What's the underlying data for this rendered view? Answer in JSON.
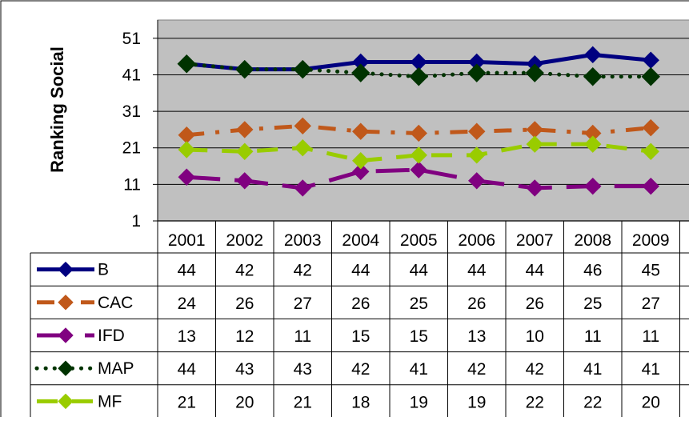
{
  "chart_data": {
    "type": "line",
    "title": "",
    "xlabel": "",
    "ylabel": "Ranking Social",
    "categories": [
      "2001",
      "2002",
      "2003",
      "2004",
      "2005",
      "2006",
      "2007",
      "2008",
      "2009"
    ],
    "yticks": [
      "1",
      "11",
      "21",
      "31",
      "41",
      "51"
    ],
    "ylim": [
      1,
      56
    ],
    "grid": true,
    "legend": "data-table",
    "plot_background": "#c0c0c0",
    "series": [
      {
        "name": "B",
        "values": [
          44,
          42,
          42,
          44,
          44,
          44,
          44,
          46,
          45
        ],
        "color": "#000080",
        "dash": "solid",
        "marker": "diamond"
      },
      {
        "name": "CAC",
        "values": [
          24,
          26,
          27,
          26,
          25,
          26,
          26,
          25,
          27
        ],
        "color": "#c0581a",
        "dash": "dash-dot",
        "marker": "diamond"
      },
      {
        "name": "IFD",
        "values": [
          13,
          12,
          11,
          15,
          15,
          13,
          10,
          11,
          11
        ],
        "color": "#800080",
        "dash": "long-dash",
        "marker": "diamond"
      },
      {
        "name": "MAP",
        "values": [
          44,
          43,
          43,
          42,
          41,
          42,
          42,
          41,
          41
        ],
        "color": "#003300",
        "dash": "dotted",
        "marker": "diamond"
      },
      {
        "name": "MF",
        "values": [
          21,
          20,
          21,
          18,
          19,
          19,
          22,
          22,
          20
        ],
        "color": "#99cc00",
        "dash": "dash",
        "marker": "diamond"
      }
    ],
    "plot_values": {
      "B": [
        44,
        42.5,
        42.5,
        44.5,
        44.5,
        44.5,
        44,
        46.5,
        45
      ],
      "CAC": [
        24.5,
        26,
        27,
        25.5,
        25,
        25.5,
        26,
        25,
        26.5
      ],
      "IFD": [
        13,
        12,
        10,
        14.5,
        15,
        12,
        10,
        10.5,
        10.5
      ],
      "MAP": [
        44,
        42.5,
        42.5,
        41.5,
        40.5,
        41.5,
        41.5,
        40.5,
        40.5
      ],
      "MF": [
        20.5,
        20,
        21,
        17.5,
        19,
        19,
        22,
        22,
        20
      ]
    }
  }
}
